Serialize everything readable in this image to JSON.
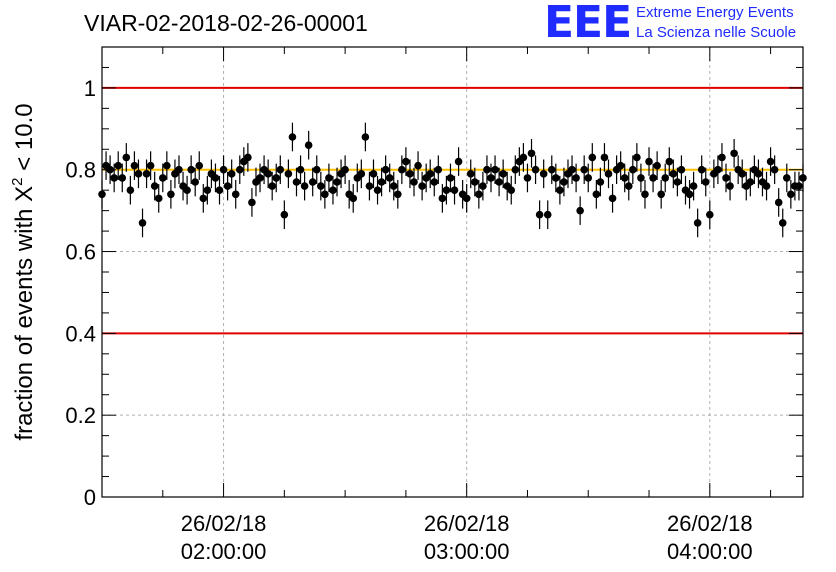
{
  "title": "VIAR-02-2018-02-26-00001",
  "logo": {
    "mark": "EEE",
    "line1": "Extreme Energy Events",
    "line2": "La Scienza nelle Scuole",
    "color": "#1f2bff"
  },
  "chart_data": {
    "type": "scatter",
    "title": "VIAR-02-2018-02-26-00001",
    "ylabel": "fraction of events with X² < 10.0",
    "ylabel_parts": {
      "prefix": "fraction of events with X",
      "sup": "2",
      "suffix": " < 10.0"
    },
    "xlabel": "",
    "ylim": [
      0,
      1.1
    ],
    "xlim": [
      "2018-02-26 01:30",
      "2018-02-26 04:23"
    ],
    "yticks": [
      "0",
      "0.2",
      "0.4",
      "0.6",
      "0.8",
      "1"
    ],
    "xticks": [
      {
        "date": "26/02/18",
        "time": "02:00:00"
      },
      {
        "date": "26/02/18",
        "time": "03:00:00"
      },
      {
        "date": "26/02/18",
        "time": "04:00:00"
      }
    ],
    "grid": true,
    "reference_lines": [
      {
        "y": 1.0,
        "color": "#e00000"
      },
      {
        "y": 0.4,
        "color": "#e00000"
      },
      {
        "y": 0.8,
        "color": "#ffc000"
      }
    ],
    "error_bar": 0.035,
    "x_start": "2018-02-26 01:30",
    "x_step_minutes": 1,
    "values": [
      0.74,
      0.81,
      0.8,
      0.78,
      0.81,
      0.78,
      0.83,
      0.75,
      0.81,
      0.79,
      0.67,
      0.79,
      0.81,
      0.76,
      0.73,
      0.78,
      0.81,
      0.74,
      0.79,
      0.8,
      0.76,
      0.75,
      0.8,
      0.77,
      0.81,
      0.73,
      0.75,
      0.79,
      0.78,
      0.75,
      0.8,
      0.76,
      0.79,
      0.74,
      0.8,
      0.82,
      0.83,
      0.72,
      0.77,
      0.78,
      0.8,
      0.79,
      0.76,
      0.78,
      0.8,
      0.69,
      0.79,
      0.88,
      0.77,
      0.8,
      0.76,
      0.86,
      0.77,
      0.8,
      0.76,
      0.74,
      0.78,
      0.75,
      0.77,
      0.79,
      0.8,
      0.74,
      0.73,
      0.78,
      0.79,
      0.88,
      0.76,
      0.79,
      0.75,
      0.77,
      0.8,
      0.78,
      0.76,
      0.74,
      0.8,
      0.82,
      0.79,
      0.77,
      0.81,
      0.76,
      0.78,
      0.79,
      0.77,
      0.8,
      0.73,
      0.75,
      0.78,
      0.75,
      0.82,
      0.74,
      0.73,
      0.79,
      0.77,
      0.74,
      0.76,
      0.8,
      0.78,
      0.8,
      0.77,
      0.79,
      0.76,
      0.75,
      0.8,
      0.82,
      0.83,
      0.78,
      0.84,
      0.8,
      0.69,
      0.79,
      0.69,
      0.8,
      0.78,
      0.75,
      0.77,
      0.79,
      0.8,
      0.78,
      0.7,
      0.8,
      0.78,
      0.83,
      0.74,
      0.77,
      0.83,
      0.79,
      0.73,
      0.8,
      0.81,
      0.78,
      0.76,
      0.8,
      0.83,
      0.78,
      0.74,
      0.82,
      0.78,
      0.81,
      0.74,
      0.78,
      0.82,
      0.79,
      0.77,
      0.8,
      0.75,
      0.74,
      0.76,
      0.67,
      0.8,
      0.77,
      0.69,
      0.79,
      0.8,
      0.83,
      0.78,
      0.76,
      0.84,
      0.8,
      0.79,
      0.76,
      0.77,
      0.8,
      0.79,
      0.77,
      0.76,
      0.82,
      0.8,
      0.72,
      0.67,
      0.78,
      0.74,
      0.76,
      0.76,
      0.78,
      0.8,
      0.77,
      0.76,
      0.74,
      0.81,
      0.8,
      0.73,
      0.8,
      0.79,
      0.79,
      0.78,
      0.66,
      0.8,
      0.79,
      0.78,
      0.77,
      0.73,
      0.79,
      0.79,
      0.8,
      0.74,
      0.78,
      0.8,
      0.7,
      0.8,
      0.75,
      0.78,
      0.76
    ]
  }
}
